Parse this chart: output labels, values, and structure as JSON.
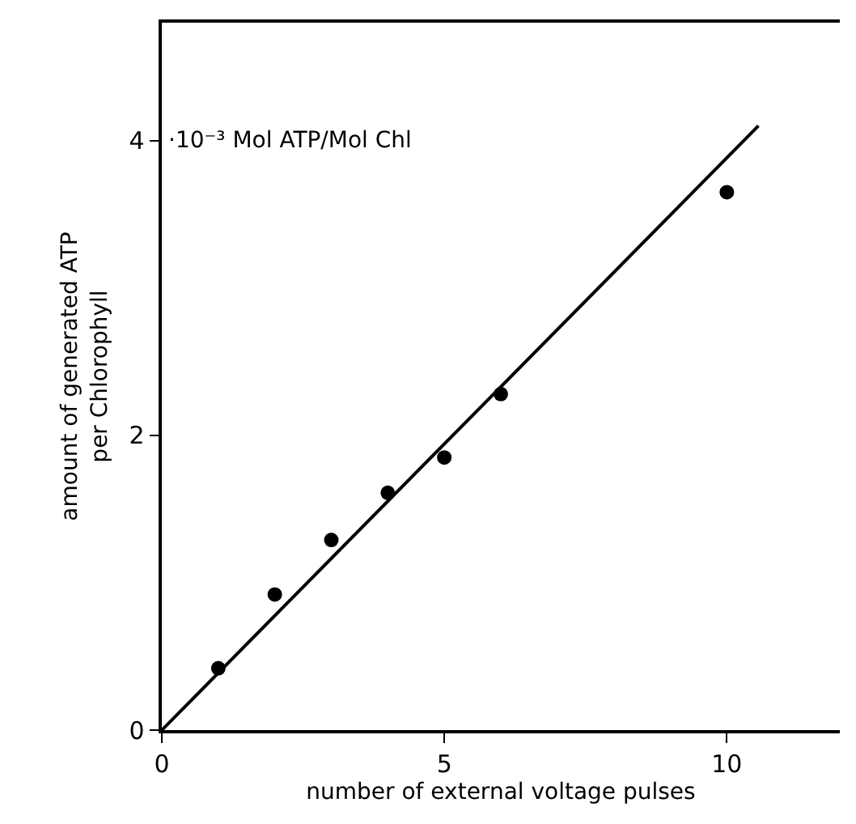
{
  "chart_data": {
    "type": "scatter",
    "xlabel": "number of external voltage pulses",
    "ylabel": "amount of generated ATP\nper Chlorophyll",
    "xlim": [
      0,
      12
    ],
    "ylim": [
      0,
      4.8
    ],
    "xticks": [
      0,
      5,
      10
    ],
    "yticks": [
      0,
      2,
      4
    ],
    "annotations": [
      "·10⁻³ Mol ATP/Mol Chl"
    ],
    "series": [
      {
        "color": "#000000",
        "marker": "circle",
        "x": [
          1,
          2,
          3,
          4,
          5,
          6,
          10
        ],
        "values": [
          0.42,
          0.92,
          1.29,
          1.61,
          1.85,
          2.28,
          3.65
        ]
      },
      {
        "type": "line",
        "color": "#000000",
        "marker": "none",
        "line_style": "solid",
        "x": [
          0,
          10.56
        ],
        "values": [
          0,
          4.1
        ]
      }
    ]
  }
}
